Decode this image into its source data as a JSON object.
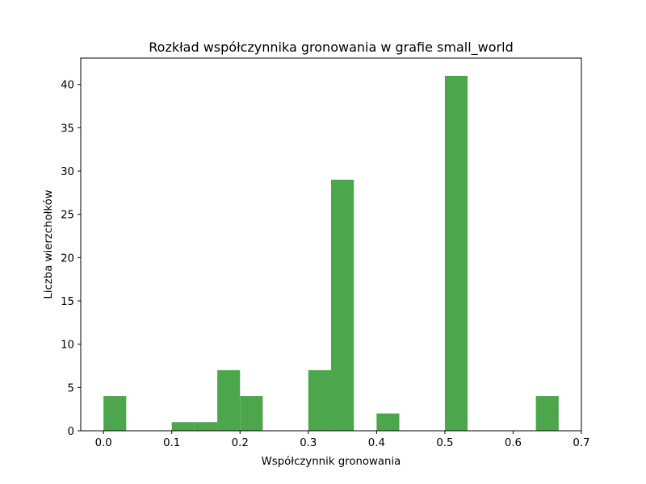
{
  "chart_data": {
    "type": "bar",
    "title": "Rozkład współczynnika gronowania w grafie small_world",
    "xlabel": "Współczynnik gronowania",
    "ylabel": "Liczba wierzchołków",
    "xlim": [
      -0.0333,
      0.7
    ],
    "ylim": [
      0,
      43.05
    ],
    "x_ticks": [
      "0.0",
      "0.1",
      "0.2",
      "0.3",
      "0.4",
      "0.5",
      "0.6",
      "0.7"
    ],
    "y_ticks": [
      "0",
      "5",
      "10",
      "15",
      "20",
      "25",
      "30",
      "35",
      "40"
    ],
    "bin_edges": [
      0.0,
      0.0333,
      0.0667,
      0.1,
      0.1333,
      0.1667,
      0.2,
      0.2333,
      0.2667,
      0.3,
      0.3333,
      0.3667,
      0.4,
      0.4333,
      0.4667,
      0.5,
      0.5333,
      0.5667,
      0.6,
      0.6333,
      0.6667
    ],
    "values": [
      4,
      0,
      0,
      1,
      1,
      7,
      4,
      0,
      0,
      7,
      29,
      0,
      2,
      0,
      0,
      41,
      0,
      0,
      0,
      4
    ],
    "color": "#4ca64c",
    "grid": false,
    "legend": "none"
  }
}
